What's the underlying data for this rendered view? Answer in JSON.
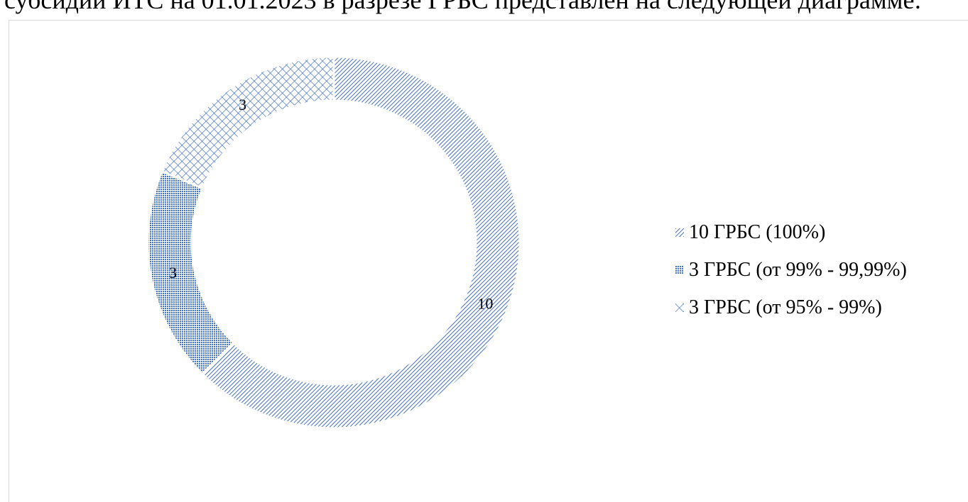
{
  "document": {
    "top_text": "субсидии ИТС на 01.01.2023 в разрезе ГРБС представлен на следующей диаграмме:"
  },
  "chart_data": {
    "type": "pie",
    "style": "donut",
    "title": "",
    "series": [
      {
        "values": [
          10,
          3,
          3
        ],
        "labels": [
          "10",
          "3",
          "3"
        ]
      }
    ],
    "categories": [
      "10 ГРБС (100%)",
      "3 ГРБС (от 99% - 99,99%)",
      "3 ГРБС (от 95% - 99%)"
    ],
    "patterns": [
      "dense-diagonal",
      "dotted-grid",
      "crosshatch"
    ],
    "legend_position": "right",
    "colors": {
      "series": "#4472c4",
      "text": "#000000",
      "frame": "#d9d9d9"
    }
  }
}
